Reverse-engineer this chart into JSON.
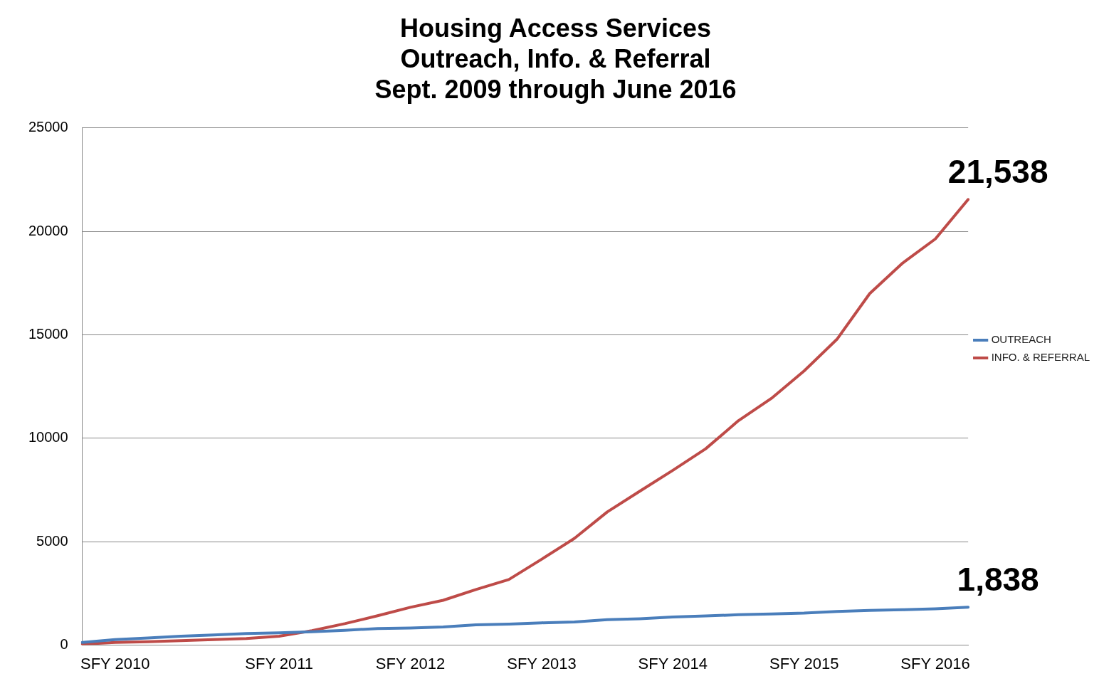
{
  "chart_data": {
    "type": "line",
    "title": "Housing Access Services\nOutreach, Info. & Referral\nSept. 2009 through June 2016",
    "categories": [
      null,
      "SFY 2010",
      null,
      null,
      null,
      null,
      "SFY 2011",
      null,
      null,
      null,
      "SFY 2012",
      null,
      null,
      null,
      "SFY 2013",
      null,
      null,
      null,
      "SFY 2014",
      null,
      null,
      null,
      "SFY 2015",
      null,
      null,
      null,
      "SFY 2016",
      null
    ],
    "series": [
      {
        "name": "OUTREACH",
        "color": "#4a7ebb",
        "values": [
          130,
          270,
          345,
          430,
          490,
          560,
          600,
          650,
          720,
          800,
          830,
          880,
          980,
          1020,
          1080,
          1120,
          1230,
          1280,
          1360,
          1410,
          1470,
          1510,
          1550,
          1630,
          1680,
          1710,
          1760,
          1838
        ],
        "value_labels": [
          null,
          null,
          null,
          null,
          null,
          null,
          null,
          null,
          null,
          null,
          null,
          null,
          null,
          null,
          null,
          null,
          null,
          null,
          null,
          null,
          null,
          null,
          null,
          null,
          null,
          null,
          null,
          "1,838"
        ]
      },
      {
        "name": "INFO. & REFERRAL",
        "color": "#be4b48",
        "values": [
          50,
          130,
          170,
          215,
          270,
          320,
          430,
          700,
          1040,
          1420,
          1830,
          2170,
          2690,
          3170,
          4150,
          5160,
          6440,
          7450,
          8450,
          9490,
          10850,
          11920,
          13250,
          14780,
          16990,
          18460,
          19630,
          21538
        ],
        "value_labels": [
          null,
          null,
          null,
          null,
          null,
          null,
          null,
          null,
          null,
          null,
          null,
          null,
          null,
          null,
          null,
          null,
          null,
          null,
          null,
          null,
          null,
          null,
          null,
          null,
          null,
          null,
          null,
          "21,538"
        ]
      }
    ],
    "ylim": [
      0,
      25000
    ],
    "yticks": [
      0,
      5000,
      10000,
      15000,
      20000,
      25000
    ],
    "grid": "y",
    "legend": "right",
    "marker": "none",
    "line_style": "solid"
  }
}
